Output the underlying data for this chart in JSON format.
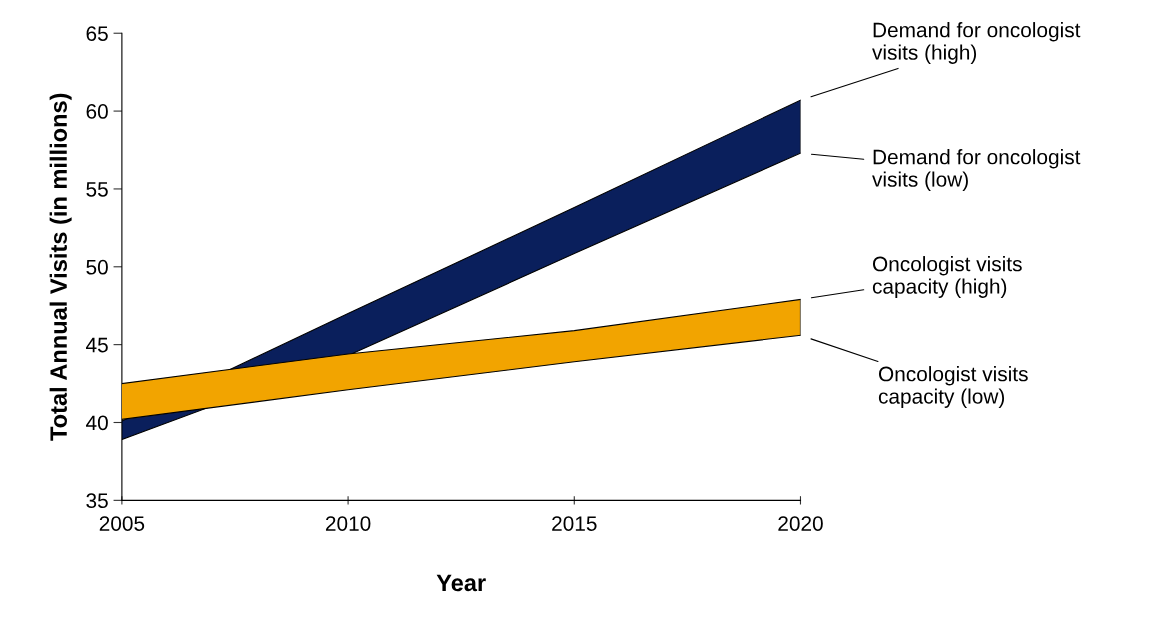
{
  "chart_data": {
    "type": "area",
    "xlabel": "Year",
    "ylabel": "Total Annual Visits (in millions)",
    "x": [
      2005,
      2010,
      2015,
      2020
    ],
    "series": [
      {
        "name": "Demand for oncologist\nvisits (high)",
        "color": "#0a1f5c",
        "values": [
          40.1,
          47.0,
          53.8,
          60.7
        ]
      },
      {
        "type": "line",
        "name": "Demand for oncologist\nvisits (low)",
        "color": "#000000",
        "values": [
          38.9,
          44.3,
          50.85,
          57.3
        ]
      },
      {
        "name": "Oncologist visits\ncapacity (high)",
        "color": "#f2a400",
        "values": [
          42.5,
          44.4,
          45.9,
          47.9
        ]
      },
      {
        "type": "line",
        "name": "Oncologist visits\ncapacity (low)",
        "color": "#000000",
        "values": [
          40.2,
          42.1,
          43.9,
          45.6
        ]
      }
    ],
    "xlim": [
      2005,
      2020
    ],
    "ylim": [
      35,
      65
    ],
    "xticks": [
      2005,
      2010,
      2015,
      2020
    ],
    "yticks": [
      35,
      40,
      45,
      50,
      55,
      60,
      65
    ],
    "grid": false,
    "legend": "right"
  }
}
